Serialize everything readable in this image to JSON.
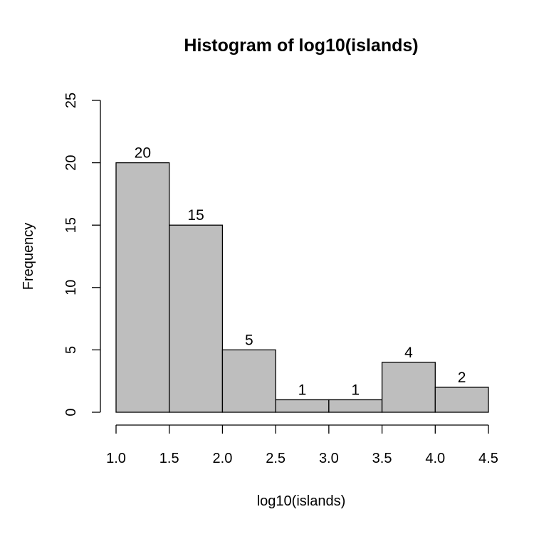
{
  "chart_data": {
    "type": "bar",
    "title": "Histogram of log10(islands)",
    "xlabel": "log10(islands)",
    "ylabel": "Frequency",
    "bins": [
      {
        "x0": 1.0,
        "x1": 1.5,
        "count": 20
      },
      {
        "x0": 1.5,
        "x1": 2.0,
        "count": 15
      },
      {
        "x0": 2.0,
        "x1": 2.5,
        "count": 5
      },
      {
        "x0": 2.5,
        "x1": 3.0,
        "count": 1
      },
      {
        "x0": 3.0,
        "x1": 3.5,
        "count": 1
      },
      {
        "x0": 3.5,
        "x1": 4.0,
        "count": 4
      },
      {
        "x0": 4.0,
        "x1": 4.5,
        "count": 2
      }
    ],
    "bar_labels": [
      "20",
      "15",
      "5",
      "1",
      "1",
      "4",
      "2"
    ],
    "xticks": [
      "1.0",
      "1.5",
      "2.0",
      "2.5",
      "3.0",
      "3.5",
      "4.0",
      "4.5"
    ],
    "yticks": [
      "0",
      "5",
      "10",
      "15",
      "20",
      "25"
    ],
    "xlim": [
      1.0,
      4.5
    ],
    "ylim": [
      0,
      25
    ],
    "bar_color": "#bebebe",
    "grid": false,
    "legend": "none"
  }
}
